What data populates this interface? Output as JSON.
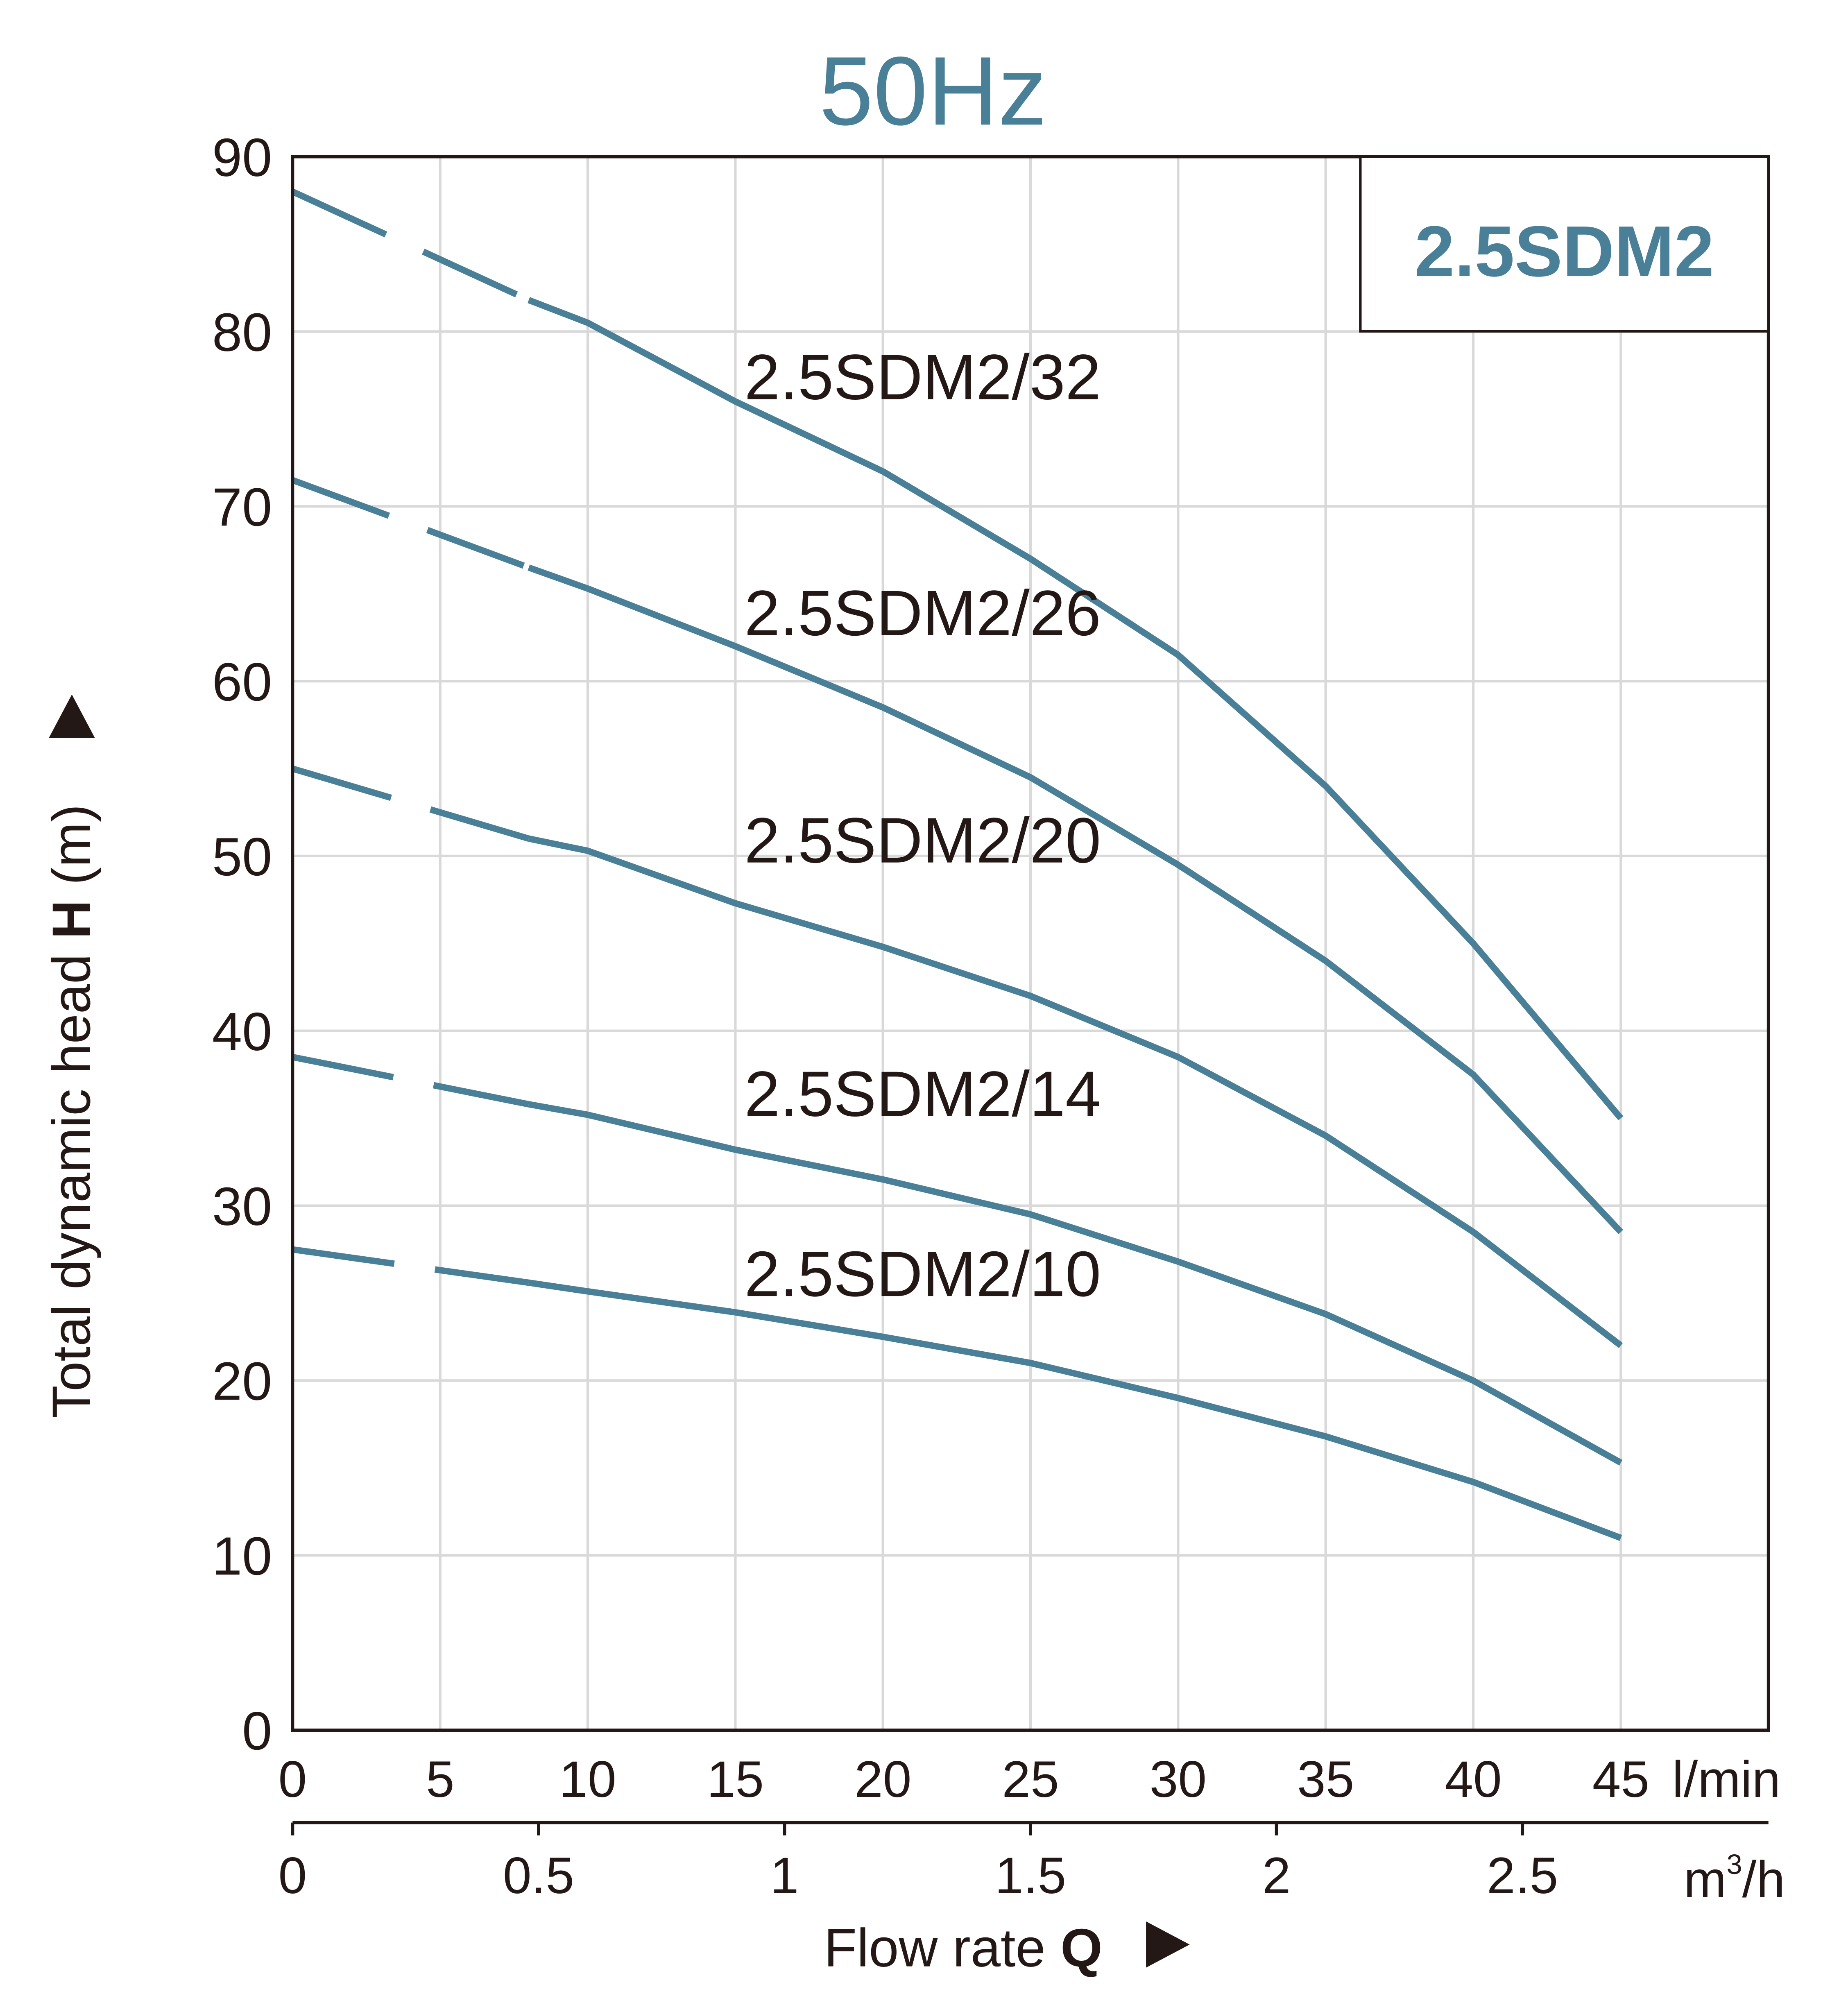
{
  "chart_data": {
    "type": "line",
    "title": "50Hz",
    "model_box": "2.5SDM2",
    "xlabel": "Flow rate",
    "xlabel_symbol": "Q",
    "ylabel": "Total dynamic head",
    "ylabel_symbol": "H",
    "ylabel_unit": "(m)",
    "x_unit": "l/min",
    "x2_unit_base": "m",
    "x2_unit_sup": "3",
    "x2_unit_tail": "/h",
    "xlim": [
      0,
      50
    ],
    "ylim": [
      0,
      90
    ],
    "grid": true,
    "x_ticks": [
      "0",
      "5",
      "10",
      "15",
      "20",
      "25",
      "30",
      "35",
      "40",
      "45"
    ],
    "x2_ticks": [
      "0",
      "0.5",
      "1",
      "1.5",
      "2",
      "2.5"
    ],
    "y_ticks": [
      "0",
      "10",
      "20",
      "30",
      "40",
      "50",
      "60",
      "70",
      "80",
      "90"
    ],
    "x": [
      0,
      8,
      10,
      15,
      20,
      25,
      30,
      35,
      40,
      45
    ],
    "dashed_until_x": 8,
    "series": [
      {
        "name": "2.5SDM2/32",
        "values": [
          88,
          81.8,
          80.5,
          76,
          72,
          67,
          61.5,
          54,
          45,
          35
        ]
      },
      {
        "name": "2.5SDM2/26",
        "values": [
          71.5,
          66.5,
          65.3,
          62,
          58.5,
          54.5,
          49.5,
          44,
          37.5,
          28.5
        ]
      },
      {
        "name": "2.5SDM2/20",
        "values": [
          55,
          51,
          50.3,
          47.3,
          44.8,
          42,
          38.5,
          34,
          28.5,
          22
        ]
      },
      {
        "name": "2.5SDM2/14",
        "values": [
          38.5,
          35.8,
          35.2,
          33.2,
          31.5,
          29.5,
          26.8,
          23.8,
          20,
          15.3
        ]
      },
      {
        "name": "2.5SDM2/10",
        "values": [
          27.5,
          25.6,
          25.1,
          23.9,
          22.5,
          21,
          19,
          16.8,
          14.2,
          11
        ]
      }
    ],
    "colors": {
      "curve": "#4a7f98",
      "title": "#4a7f98",
      "grid": "#d9d9d9",
      "axis": "#231815"
    }
  }
}
